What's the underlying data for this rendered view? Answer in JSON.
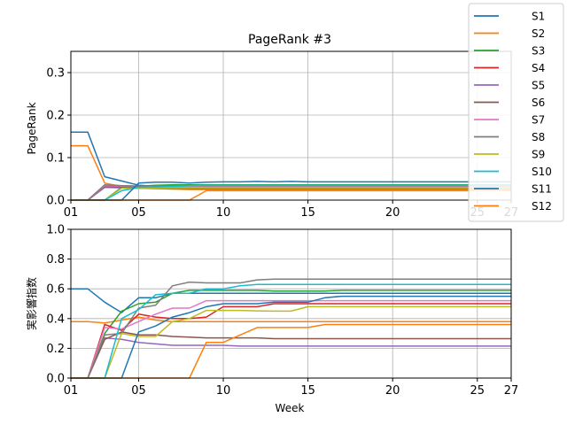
{
  "chart_data": [
    {
      "type": "line",
      "title": "PageRank #3",
      "xlabel": "",
      "ylabel": "PageRank",
      "x": [
        1,
        2,
        3,
        4,
        5,
        6,
        7,
        8,
        9,
        10,
        11,
        12,
        13,
        14,
        15,
        16,
        17,
        18,
        19,
        20,
        21,
        22,
        23,
        24,
        25,
        26,
        27
      ],
      "xlim": [
        1,
        27
      ],
      "xticks": [
        1,
        5,
        10,
        15,
        20,
        25,
        27
      ],
      "xtick_labels": [
        "01",
        "05",
        "10",
        "15",
        "20",
        "25",
        "27"
      ],
      "ylim": [
        0,
        0.35
      ],
      "yticks": [
        0,
        0.1,
        0.2,
        0.3
      ],
      "ytick_labels": [
        "0.0",
        "0.1",
        "0.2",
        "0.3"
      ],
      "grid": true,
      "series": [
        {
          "name": "S1",
          "color": "#1f77b4",
          "values": [
            0.16,
            0.16,
            0.055,
            0.045,
            0.035,
            0.033,
            0.032,
            0.031,
            0.031,
            0.031,
            0.031,
            0.031,
            0.031,
            0.031,
            0.031,
            0.031,
            0.031,
            0.031,
            0.031,
            0.031,
            0.031,
            0.031,
            0.031,
            0.031,
            0.031,
            0.031,
            0.031
          ]
        },
        {
          "name": "S2",
          "color": "#ff7f0e",
          "values": [
            0.128,
            0.128,
            0.04,
            0.032,
            0.028,
            0.027,
            0.026,
            0.025,
            0.025,
            0.025,
            0.025,
            0.025,
            0.025,
            0.025,
            0.025,
            0.025,
            0.025,
            0.025,
            0.025,
            0.025,
            0.025,
            0.025,
            0.025,
            0.025,
            0.025,
            0.025,
            0.025
          ]
        },
        {
          "name": "S3",
          "color": "#2ca02c",
          "values": [
            0,
            0,
            0,
            0.03,
            0.033,
            0.035,
            0.036,
            0.036,
            0.036,
            0.036,
            0.036,
            0.036,
            0.036,
            0.036,
            0.036,
            0.036,
            0.036,
            0.036,
            0.036,
            0.036,
            0.036,
            0.036,
            0.036,
            0.036,
            0.036,
            0.036,
            0.036
          ]
        },
        {
          "name": "S4",
          "color": "#d62728",
          "values": [
            0,
            0,
            0.035,
            0.034,
            0.033,
            0.033,
            0.033,
            0.032,
            0.032,
            0.032,
            0.032,
            0.032,
            0.032,
            0.032,
            0.032,
            0.032,
            0.032,
            0.032,
            0.032,
            0.032,
            0.032,
            0.032,
            0.032,
            0.032,
            0.032,
            0.032,
            0.032
          ]
        },
        {
          "name": "S5",
          "color": "#9467bd",
          "values": [
            0,
            0,
            0.03,
            0.029,
            0.028,
            0.027,
            0.027,
            0.027,
            0.027,
            0.027,
            0.027,
            0.027,
            0.027,
            0.027,
            0.027,
            0.027,
            0.027,
            0.027,
            0.027,
            0.027,
            0.027,
            0.027,
            0.027,
            0.027,
            0.027,
            0.027,
            0.027
          ]
        },
        {
          "name": "S6",
          "color": "#8c564b",
          "values": [
            0,
            0,
            0.032,
            0.031,
            0.03,
            0.029,
            0.029,
            0.028,
            0.028,
            0.028,
            0.028,
            0.028,
            0.028,
            0.028,
            0.028,
            0.028,
            0.028,
            0.028,
            0.028,
            0.028,
            0.028,
            0.028,
            0.028,
            0.028,
            0.028,
            0.028,
            0.028
          ]
        },
        {
          "name": "S7",
          "color": "#e377c2",
          "values": [
            0,
            0,
            0.034,
            0.033,
            0.032,
            0.031,
            0.031,
            0.031,
            0.031,
            0.031,
            0.031,
            0.031,
            0.031,
            0.031,
            0.031,
            0.031,
            0.031,
            0.031,
            0.031,
            0.031,
            0.031,
            0.031,
            0.031,
            0.031,
            0.031,
            0.031,
            0.031
          ]
        },
        {
          "name": "S8",
          "color": "#7f7f7f",
          "values": [
            0,
            0,
            0.036,
            0.034,
            0.033,
            0.033,
            0.034,
            0.034,
            0.034,
            0.034,
            0.034,
            0.034,
            0.034,
            0.034,
            0.034,
            0.034,
            0.034,
            0.034,
            0.034,
            0.034,
            0.034,
            0.034,
            0.034,
            0.034,
            0.034,
            0.034,
            0.034
          ]
        },
        {
          "name": "S9",
          "color": "#bcbd22",
          "values": [
            0,
            0,
            0,
            0.028,
            0.028,
            0.028,
            0.029,
            0.029,
            0.029,
            0.029,
            0.029,
            0.029,
            0.029,
            0.029,
            0.029,
            0.029,
            0.029,
            0.029,
            0.029,
            0.029,
            0.029,
            0.029,
            0.029,
            0.029,
            0.029,
            0.029,
            0.029
          ]
        },
        {
          "name": "S10",
          "color": "#17becf",
          "values": [
            0,
            0,
            0,
            0.022,
            0.03,
            0.031,
            0.032,
            0.034,
            0.035,
            0.035,
            0.035,
            0.035,
            0.035,
            0.035,
            0.035,
            0.035,
            0.035,
            0.035,
            0.035,
            0.035,
            0.035,
            0.035,
            0.035,
            0.035,
            0.035,
            0.035,
            0.035
          ]
        },
        {
          "name": "S11",
          "color": "#1f77b4",
          "values": [
            0,
            0,
            0,
            0,
            0.04,
            0.042,
            0.042,
            0.04,
            0.042,
            0.043,
            0.043,
            0.044,
            0.043,
            0.044,
            0.043,
            0.043,
            0.043,
            0.043,
            0.043,
            0.043,
            0.043,
            0.043,
            0.043,
            0.043,
            0.043,
            0.043,
            0.043
          ]
        },
        {
          "name": "S12",
          "color": "#ff7f0e",
          "values": [
            0,
            0,
            0,
            0,
            0,
            0,
            0,
            0,
            0.022,
            0.022,
            0.022,
            0.022,
            0.022,
            0.022,
            0.022,
            0.022,
            0.022,
            0.022,
            0.022,
            0.022,
            0.022,
            0.022,
            0.022,
            0.022,
            0.022,
            0.022,
            0.022
          ]
        }
      ]
    },
    {
      "type": "line",
      "title": "",
      "xlabel": "Week",
      "ylabel": "実影響指数",
      "x": [
        1,
        2,
        3,
        4,
        5,
        6,
        7,
        8,
        9,
        10,
        11,
        12,
        13,
        14,
        15,
        16,
        17,
        18,
        19,
        20,
        21,
        22,
        23,
        24,
        25,
        26,
        27
      ],
      "xlim": [
        1,
        27
      ],
      "xticks": [
        1,
        5,
        10,
        15,
        20,
        25,
        27
      ],
      "xtick_labels": [
        "01",
        "05",
        "10",
        "15",
        "20",
        "25",
        "27"
      ],
      "ylim": [
        0,
        1.0
      ],
      "yticks": [
        0,
        0.2,
        0.4,
        0.6,
        0.8,
        1.0
      ],
      "ytick_labels": [
        "0.0",
        "0.2",
        "0.4",
        "0.6",
        "0.8",
        "1.0"
      ],
      "grid": true,
      "series": [
        {
          "name": "S1",
          "color": "#1f77b4",
          "values": [
            0.6,
            0.6,
            0.51,
            0.44,
            0.54,
            0.54,
            0.57,
            0.57,
            0.57,
            0.57,
            0.57,
            0.57,
            0.57,
            0.57,
            0.57,
            0.57,
            0.57,
            0.57,
            0.57,
            0.57,
            0.57,
            0.57,
            0.57,
            0.57,
            0.57,
            0.57,
            0.57
          ]
        },
        {
          "name": "S2",
          "color": "#ff7f0e",
          "values": [
            0.38,
            0.38,
            0.37,
            0.39,
            0.41,
            0.39,
            0.38,
            0.38,
            0.38,
            0.38,
            0.38,
            0.38,
            0.38,
            0.38,
            0.38,
            0.38,
            0.38,
            0.38,
            0.38,
            0.38,
            0.38,
            0.38,
            0.38,
            0.38,
            0.38,
            0.38,
            0.38
          ]
        },
        {
          "name": "S3",
          "color": "#2ca02c",
          "values": [
            0,
            0,
            0.3,
            0.45,
            0.5,
            0.51,
            0.57,
            0.59,
            0.59,
            0.59,
            0.59,
            0.59,
            0.585,
            0.585,
            0.585,
            0.585,
            0.59,
            0.59,
            0.59,
            0.59,
            0.59,
            0.59,
            0.59,
            0.59,
            0.59,
            0.59,
            0.59
          ]
        },
        {
          "name": "S4",
          "color": "#d62728",
          "values": [
            0,
            0,
            0.36,
            0.32,
            0.43,
            0.41,
            0.4,
            0.4,
            0.41,
            0.48,
            0.48,
            0.48,
            0.5,
            0.5,
            0.5,
            0.5,
            0.5,
            0.5,
            0.5,
            0.5,
            0.5,
            0.5,
            0.5,
            0.5,
            0.5,
            0.5,
            0.5
          ]
        },
        {
          "name": "S5",
          "color": "#9467bd",
          "values": [
            0,
            0,
            0.27,
            0.26,
            0.24,
            0.23,
            0.22,
            0.22,
            0.22,
            0.22,
            0.215,
            0.215,
            0.215,
            0.215,
            0.215,
            0.215,
            0.215,
            0.215,
            0.215,
            0.215,
            0.215,
            0.215,
            0.215,
            0.215,
            0.215,
            0.215,
            0.215
          ]
        },
        {
          "name": "S6",
          "color": "#8c564b",
          "values": [
            0,
            0,
            0.26,
            0.31,
            0.29,
            0.29,
            0.28,
            0.275,
            0.27,
            0.27,
            0.27,
            0.27,
            0.265,
            0.265,
            0.265,
            0.265,
            0.265,
            0.265,
            0.265,
            0.265,
            0.265,
            0.265,
            0.265,
            0.265,
            0.265,
            0.265,
            0.265
          ]
        },
        {
          "name": "S7",
          "color": "#e377c2",
          "values": [
            0,
            0,
            0.34,
            0.33,
            0.38,
            0.43,
            0.47,
            0.47,
            0.52,
            0.52,
            0.52,
            0.52,
            0.52,
            0.52,
            0.52,
            0.52,
            0.52,
            0.52,
            0.52,
            0.52,
            0.52,
            0.52,
            0.52,
            0.52,
            0.52,
            0.52,
            0.52
          ]
        },
        {
          "name": "S8",
          "color": "#7f7f7f",
          "values": [
            0,
            0,
            0.29,
            0.3,
            0.47,
            0.49,
            0.62,
            0.645,
            0.64,
            0.64,
            0.64,
            0.66,
            0.665,
            0.665,
            0.665,
            0.665,
            0.665,
            0.665,
            0.665,
            0.665,
            0.665,
            0.665,
            0.665,
            0.665,
            0.665,
            0.665,
            0.665
          ]
        },
        {
          "name": "S9",
          "color": "#bcbd22",
          "values": [
            0,
            0,
            0,
            0.3,
            0.28,
            0.28,
            0.38,
            0.4,
            0.455,
            0.455,
            0.455,
            0.452,
            0.45,
            0.45,
            0.48,
            0.48,
            0.48,
            0.48,
            0.48,
            0.48,
            0.48,
            0.48,
            0.48,
            0.48,
            0.48,
            0.48,
            0.48
          ]
        },
        {
          "name": "S10",
          "color": "#17becf",
          "values": [
            0,
            0,
            0,
            0.4,
            0.46,
            0.56,
            0.57,
            0.57,
            0.6,
            0.6,
            0.62,
            0.63,
            0.63,
            0.63,
            0.63,
            0.63,
            0.63,
            0.63,
            0.63,
            0.63,
            0.63,
            0.63,
            0.63,
            0.63,
            0.63,
            0.63,
            0.63
          ]
        },
        {
          "name": "S11",
          "color": "#1f77b4",
          "values": [
            0,
            0,
            0,
            0,
            0.31,
            0.35,
            0.41,
            0.44,
            0.48,
            0.5,
            0.5,
            0.5,
            0.51,
            0.51,
            0.51,
            0.54,
            0.55,
            0.55,
            0.55,
            0.55,
            0.55,
            0.55,
            0.55,
            0.55,
            0.55,
            0.55,
            0.55
          ]
        },
        {
          "name": "S12",
          "color": "#ff7f0e",
          "values": [
            0,
            0,
            0,
            0,
            0,
            0,
            0,
            0,
            0.24,
            0.24,
            0.29,
            0.34,
            0.34,
            0.34,
            0.34,
            0.36,
            0.36,
            0.36,
            0.36,
            0.36,
            0.36,
            0.36,
            0.36,
            0.36,
            0.36,
            0.36,
            0.36
          ]
        }
      ]
    }
  ],
  "legend": {
    "placement": "top-right",
    "entries": [
      "S1",
      "S2",
      "S3",
      "S4",
      "S5",
      "S6",
      "S7",
      "S8",
      "S9",
      "S10",
      "S11",
      "S12"
    ]
  }
}
